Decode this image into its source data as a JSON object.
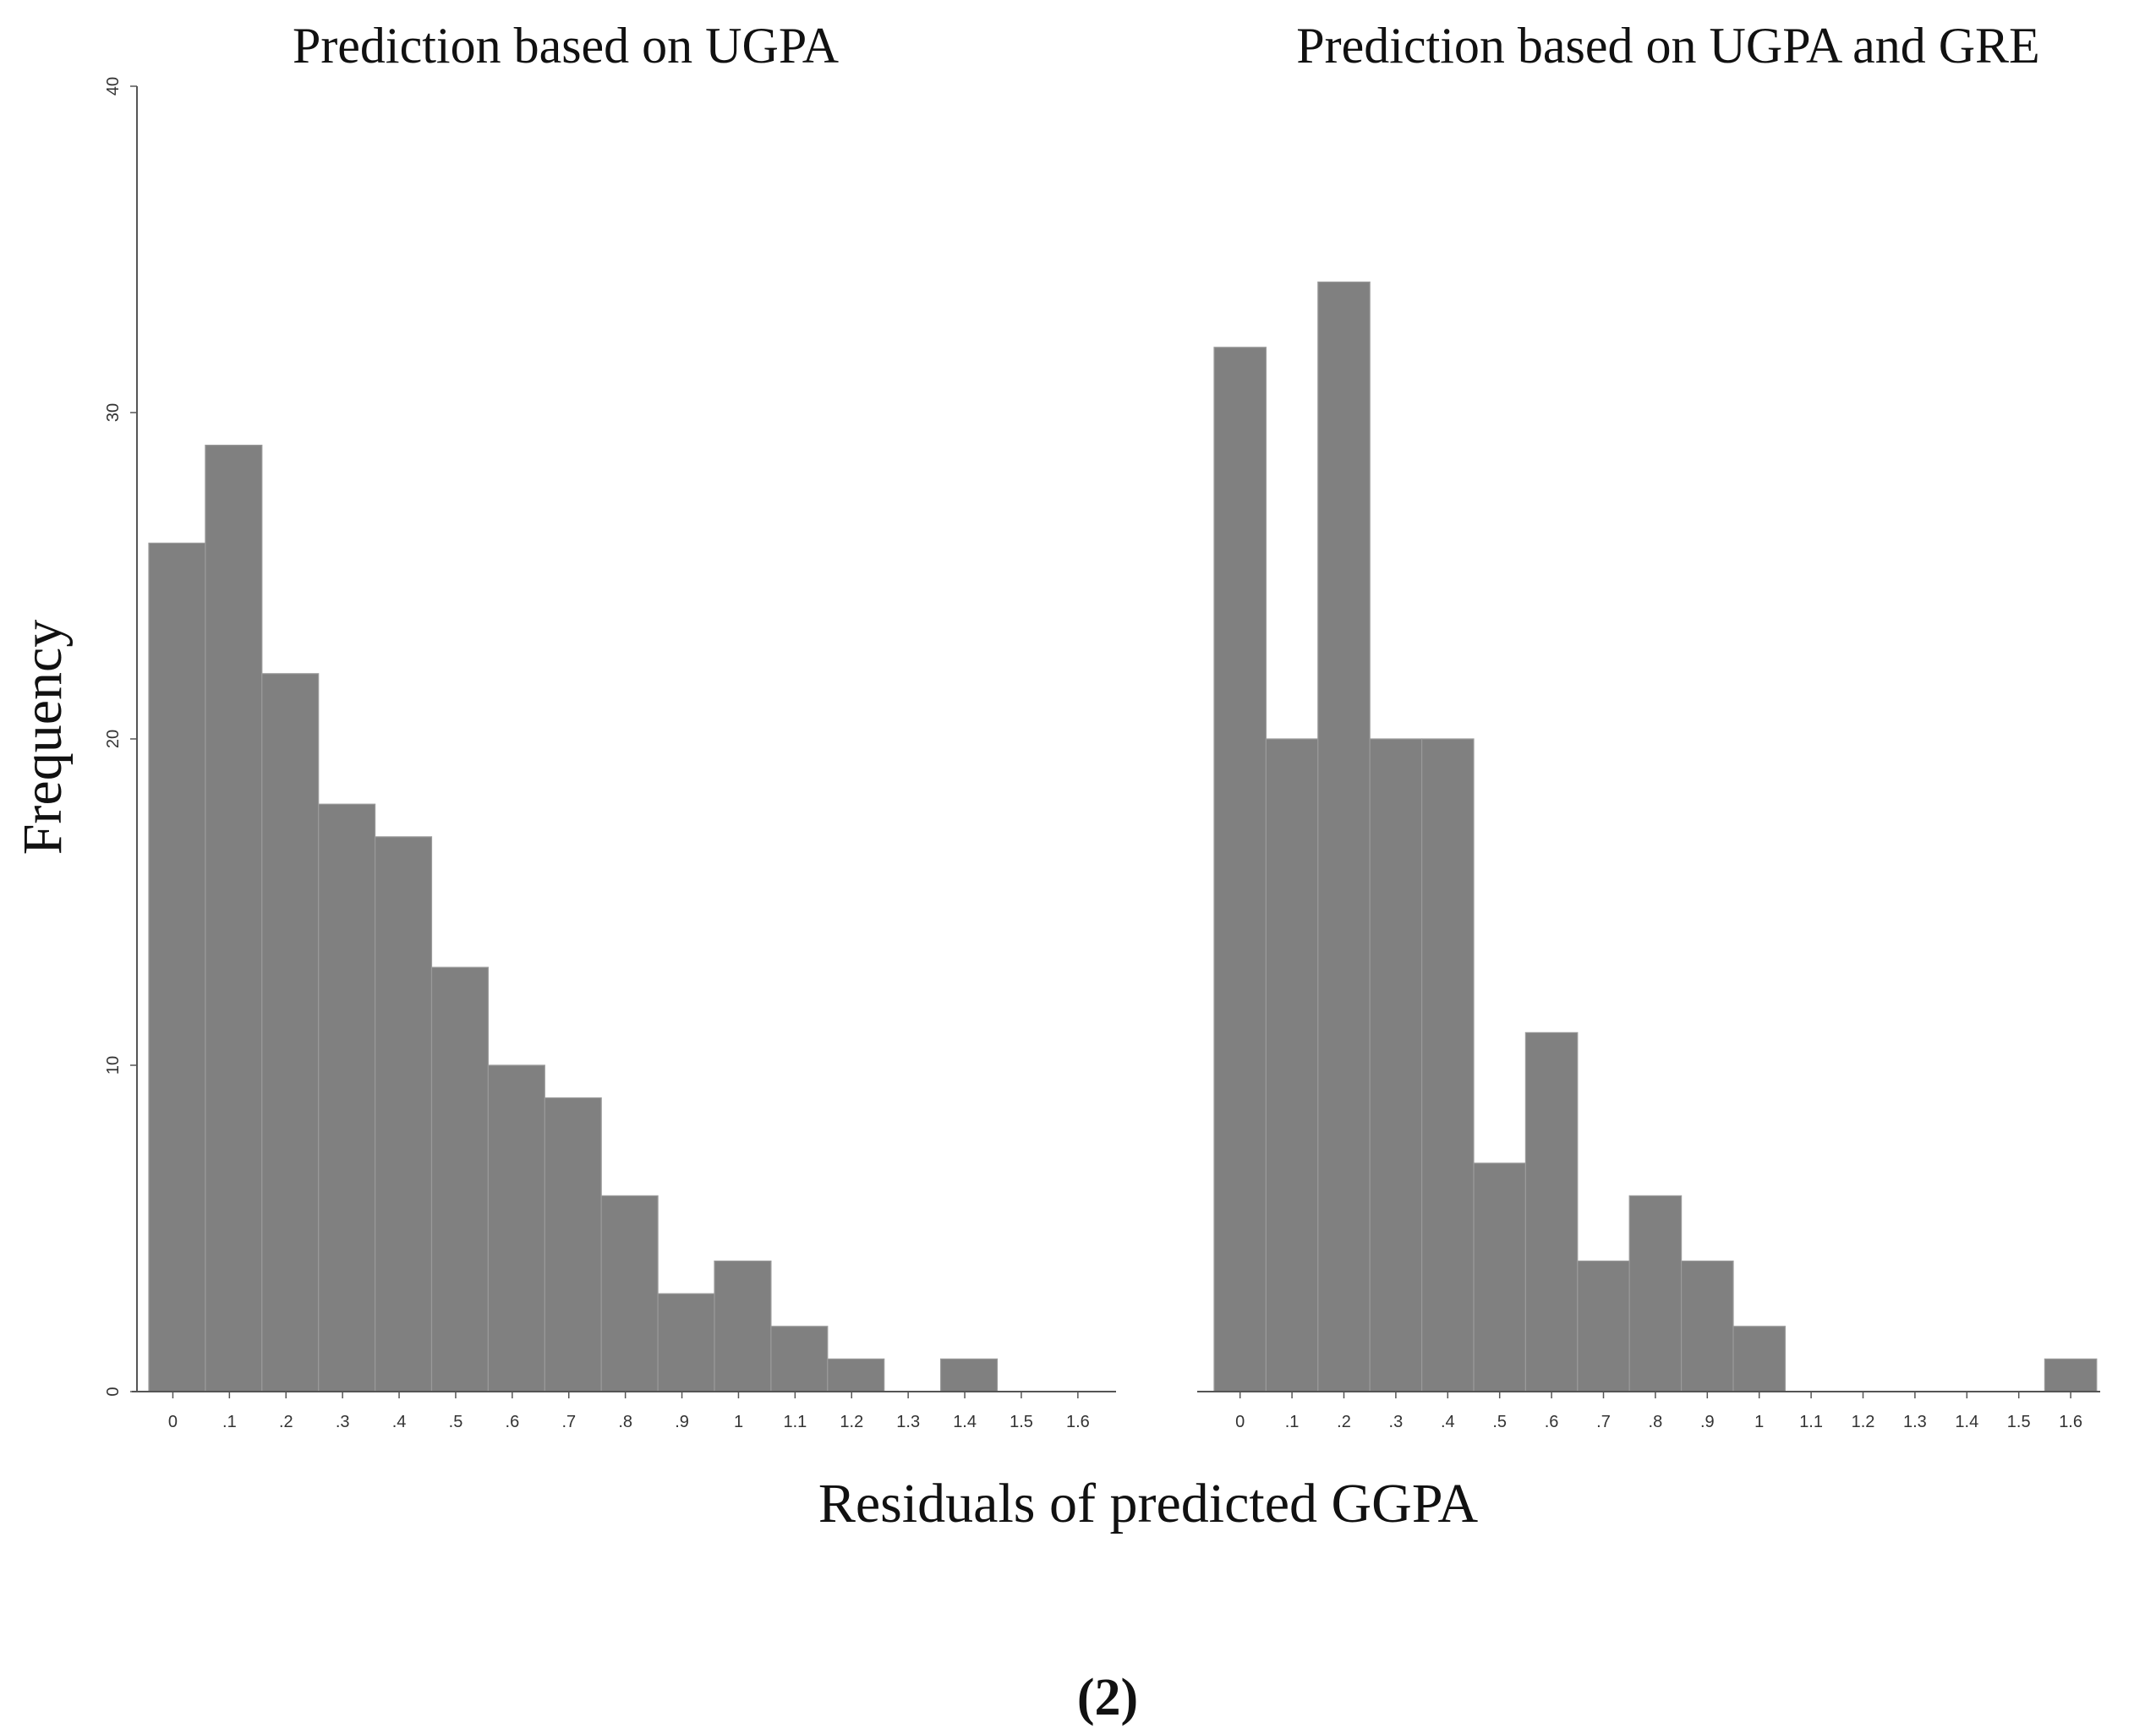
{
  "figure_label": "(2)",
  "shared_ylabel": "Frequency",
  "shared_xlabel": "Residuals of predicted GGPA",
  "chart_data": [
    {
      "type": "bar",
      "title": "Prediction based on UGPA",
      "xlabel": "Residuals of predicted GGPA",
      "ylabel": "Frequency",
      "ylim": [
        0,
        40
      ],
      "yticks": [
        "0",
        "10",
        "20",
        "30",
        "40"
      ],
      "categories": [
        "0",
        ".1",
        ".2",
        ".3",
        ".4",
        ".5",
        ".6",
        ".7",
        ".8",
        ".9",
        "1",
        "1.1",
        "1.2",
        "1.3",
        "1.4",
        "1.5",
        "1.6"
      ],
      "values": [
        26,
        29,
        22,
        18,
        17,
        13,
        10,
        9,
        6,
        3,
        4,
        2,
        1,
        0,
        1,
        0,
        0
      ],
      "bar_color": "#808080"
    },
    {
      "type": "bar",
      "title": "Prediction based on UGPA and GRE",
      "xlabel": "Residuals of predicted GGPA",
      "ylabel": "Frequency",
      "ylim": [
        0,
        40
      ],
      "categories": [
        "0",
        ".1",
        ".2",
        ".3",
        ".4",
        ".5",
        ".6",
        ".7",
        ".8",
        ".9",
        "1",
        "1.1",
        "1.2",
        "1.3",
        "1.4",
        "1.5",
        "1.6"
      ],
      "values": [
        32,
        20,
        34,
        20,
        20,
        7,
        11,
        4,
        6,
        4,
        2,
        0,
        0,
        0,
        0,
        0,
        1
      ],
      "bar_color": "#808080"
    }
  ]
}
